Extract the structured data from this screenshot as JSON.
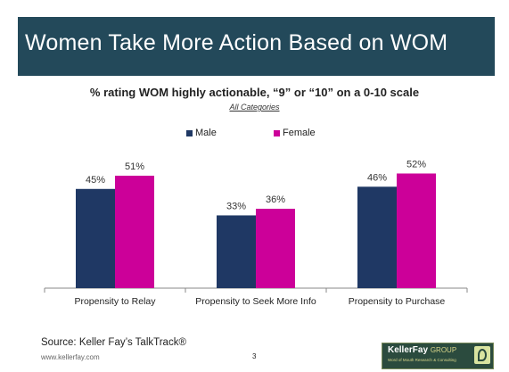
{
  "slide": {
    "title": "Women Take More Action Based on WOM",
    "page_number": "3",
    "source": "Source:  Keller Fay’s TalkTrack®",
    "url": "www.kellerfay.com",
    "logo": {
      "name": "KellerFay",
      "group": "GROUP",
      "tagline": "Word of Mouth Research & Consulting"
    },
    "colors": {
      "title_bar": "#23495a"
    }
  },
  "chart_data": {
    "type": "bar",
    "title": "% rating WOM highly actionable, “9” or “10” on a 0-10 scale",
    "subtitle": "All Categories",
    "categories": [
      "Propensity to Relay",
      "Propensity to Seek More Info",
      "Propensity to Purchase"
    ],
    "series": [
      {
        "name": "Male",
        "color": "#1f3864",
        "values": [
          45,
          33,
          46
        ],
        "labels": [
          "45%",
          "33%",
          "46%"
        ]
      },
      {
        "name": "Female",
        "color": "#cc0099",
        "values": [
          51,
          36,
          52
        ],
        "labels": [
          "51%",
          "36%",
          "52%"
        ]
      }
    ],
    "ylim": [
      0,
      70
    ],
    "grid": false,
    "legend": "top-center",
    "xlabel": "",
    "ylabel": ""
  }
}
